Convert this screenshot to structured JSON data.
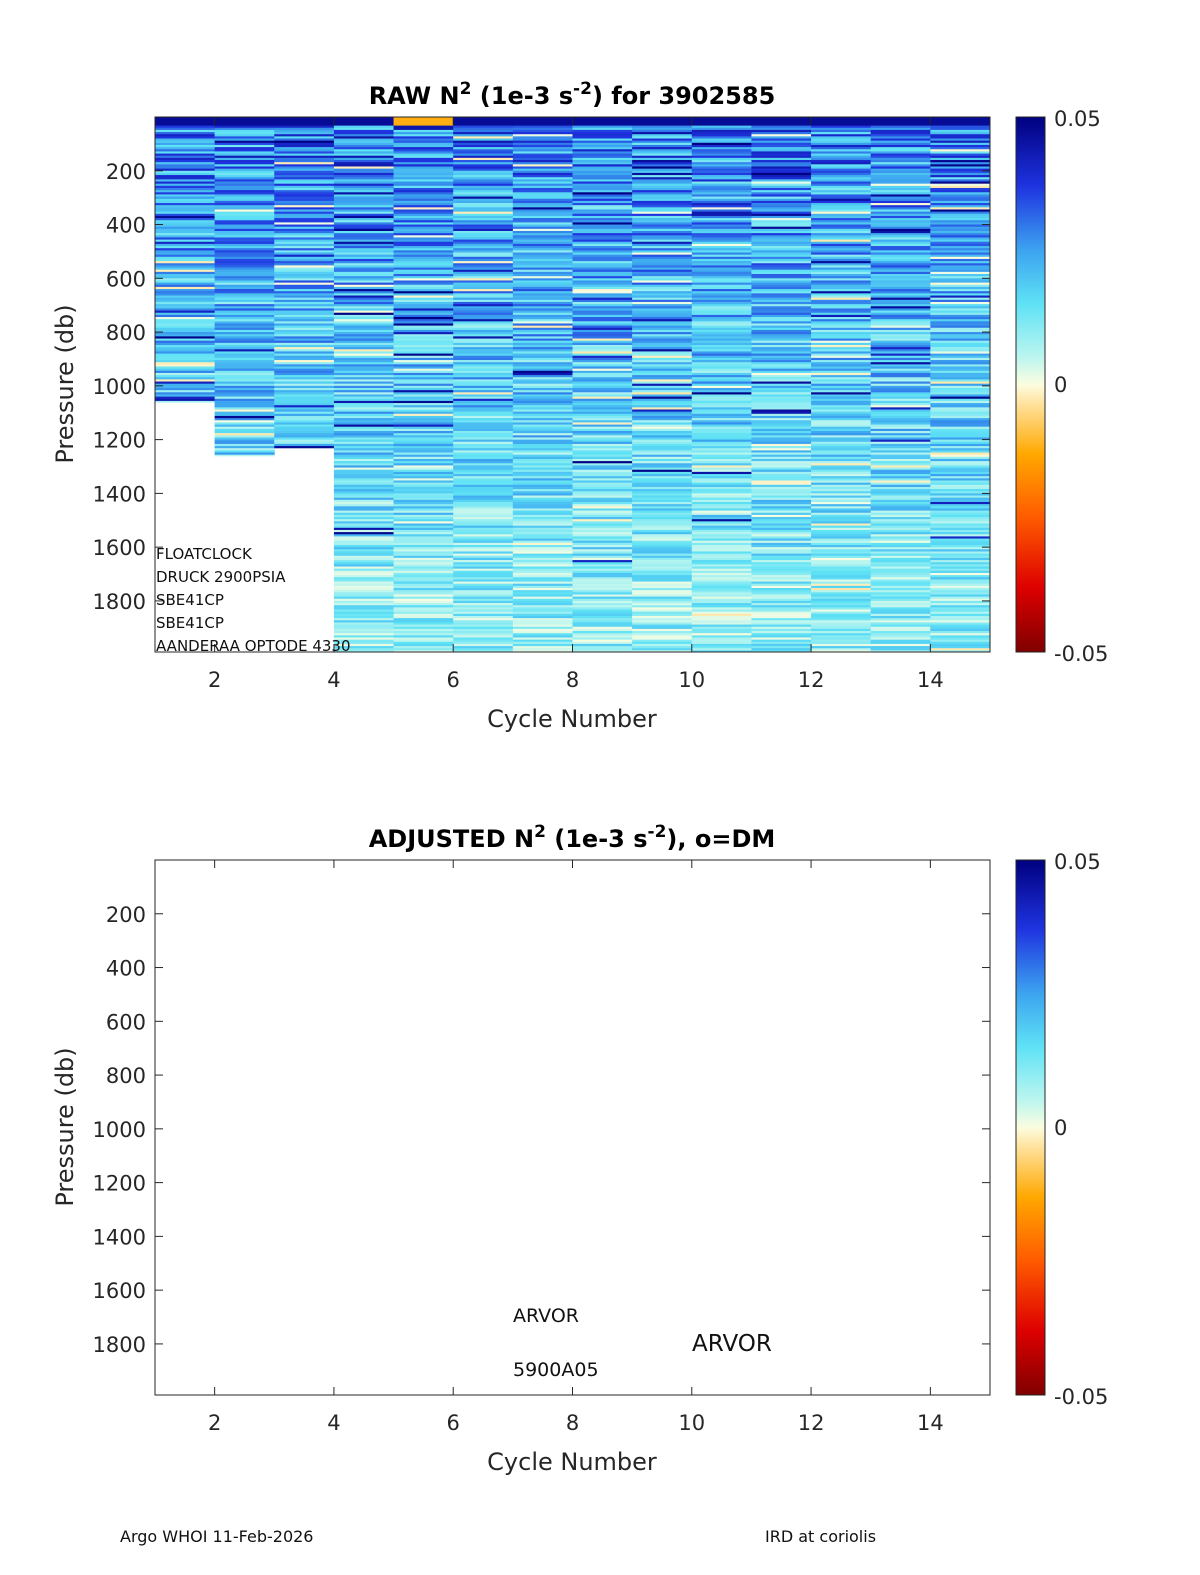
{
  "chart_data": [
    {
      "type": "heatmap",
      "title_main": "RAW N",
      "title_sup1": "2",
      "title_mid": " (1e-3 s",
      "title_sup2": "-2",
      "title_end": ") for 3902585",
      "xlabel": "Cycle Number",
      "ylabel": "Pressure (db)",
      "xlim": [
        1,
        15
      ],
      "ylim": [
        1990,
        0
      ],
      "xticks": [
        "2",
        "4",
        "6",
        "8",
        "10",
        "12",
        "14"
      ],
      "yticks": [
        "200",
        "400",
        "600",
        "800",
        "1000",
        "1200",
        "1400",
        "1600",
        "1800"
      ],
      "colorbar": {
        "max": "0.05",
        "mid": "0",
        "min": "-0.05",
        "clim": [
          -0.05,
          0.05
        ]
      },
      "profile_max_pressure": [
        1060,
        1260,
        1230,
        1990,
        1990,
        1990,
        1990,
        1990,
        1990,
        1990,
        1990,
        1990,
        1990,
        1990
      ],
      "sensor_notes": [
        "FLOATCLOCK",
        "DRUCK 2900PSIA",
        "SBE41CP",
        "SBE41CP",
        "AANDERAA OPTODE 4330"
      ]
    },
    {
      "type": "heatmap",
      "title_main": "ADJUSTED N",
      "title_sup1": "2",
      "title_mid": " (1e-3 s",
      "title_sup2": "-2",
      "title_end": "), o=DM",
      "xlabel": "Cycle Number",
      "ylabel": "Pressure (db)",
      "xlim": [
        1,
        15
      ],
      "ylim": [
        1990,
        0
      ],
      "xticks": [
        "2",
        "4",
        "6",
        "8",
        "10",
        "12",
        "14"
      ],
      "yticks": [
        "200",
        "400",
        "600",
        "800",
        "1000",
        "1200",
        "1400",
        "1600",
        "1800"
      ],
      "colorbar": {
        "max": "0.05",
        "mid": "0",
        "min": "-0.05",
        "clim": [
          -0.05,
          0.05
        ]
      },
      "annotations": {
        "platform": "ARVOR",
        "model": "ARVOR",
        "firmware": "5900A05"
      }
    }
  ],
  "footer": {
    "left": "Argo WHOI 11-Feb-2026",
    "right": "IRD at coriolis"
  }
}
